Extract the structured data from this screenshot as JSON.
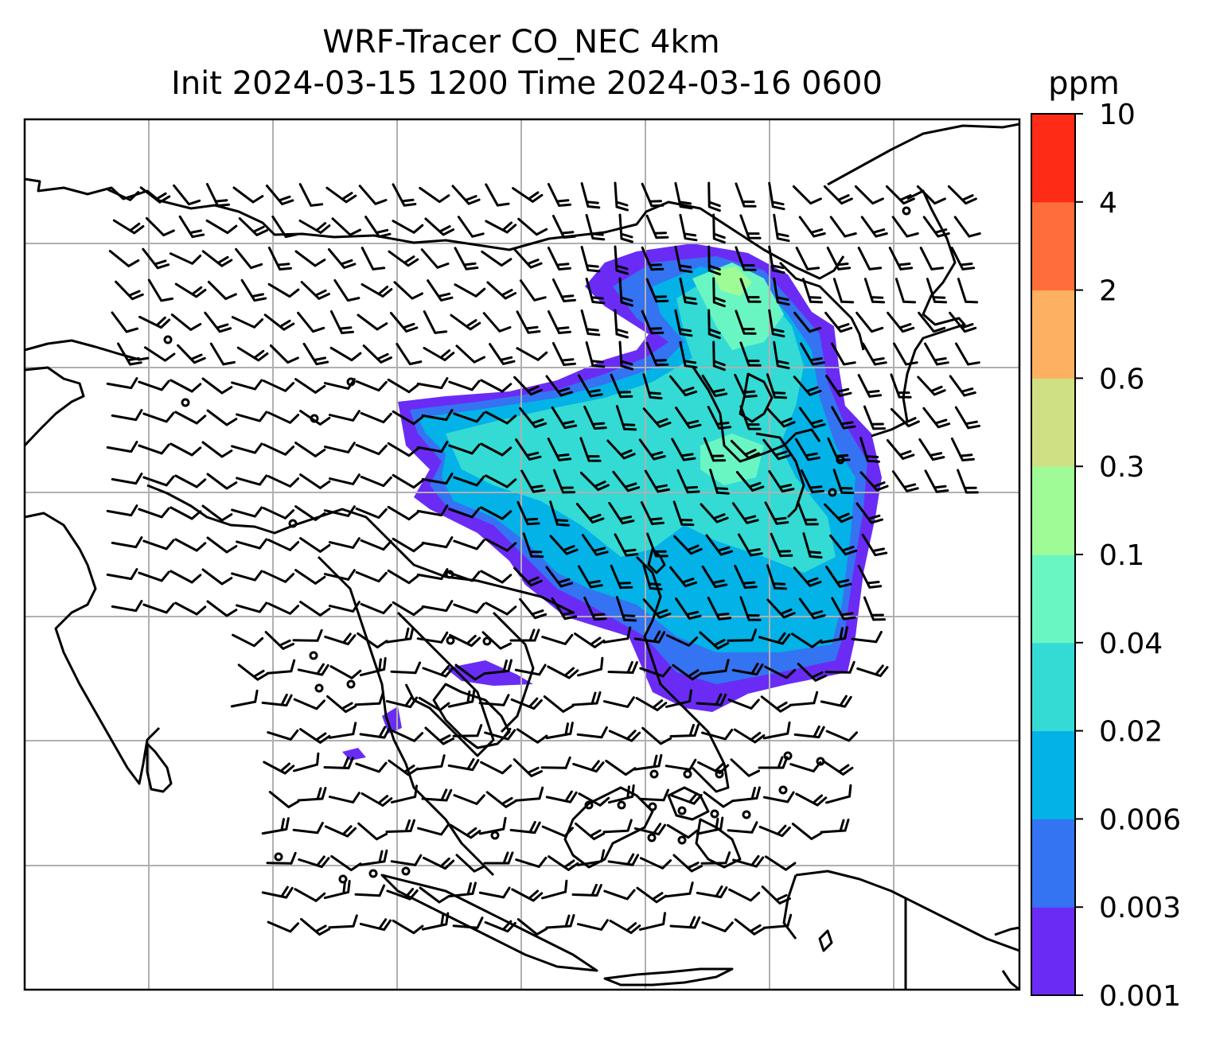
{
  "title": {
    "line1": "WRF-Tracer CO_NEC 4km",
    "line2": "Init 2024-03-15 1200 Time 2024-03-16 0600"
  },
  "colorbar": {
    "unit": "ppm",
    "levels": [
      "0.001",
      "0.003",
      "0.006",
      "0.02",
      "0.04",
      "0.1",
      "0.3",
      "0.6",
      "2",
      "4",
      "10"
    ],
    "colors": [
      "#6a2cf5",
      "#3473f2",
      "#03b2e7",
      "#33dbd4",
      "#6af6c3",
      "#9efb95",
      "#cfe084",
      "#fdb062",
      "#fe6e3a",
      "#fe2b16"
    ]
  },
  "map": {
    "grid": "on",
    "colors": {
      "border": "#000000",
      "coastline": "#000000",
      "gridline": "#b0b0b0",
      "barb": "#000000"
    }
  }
}
